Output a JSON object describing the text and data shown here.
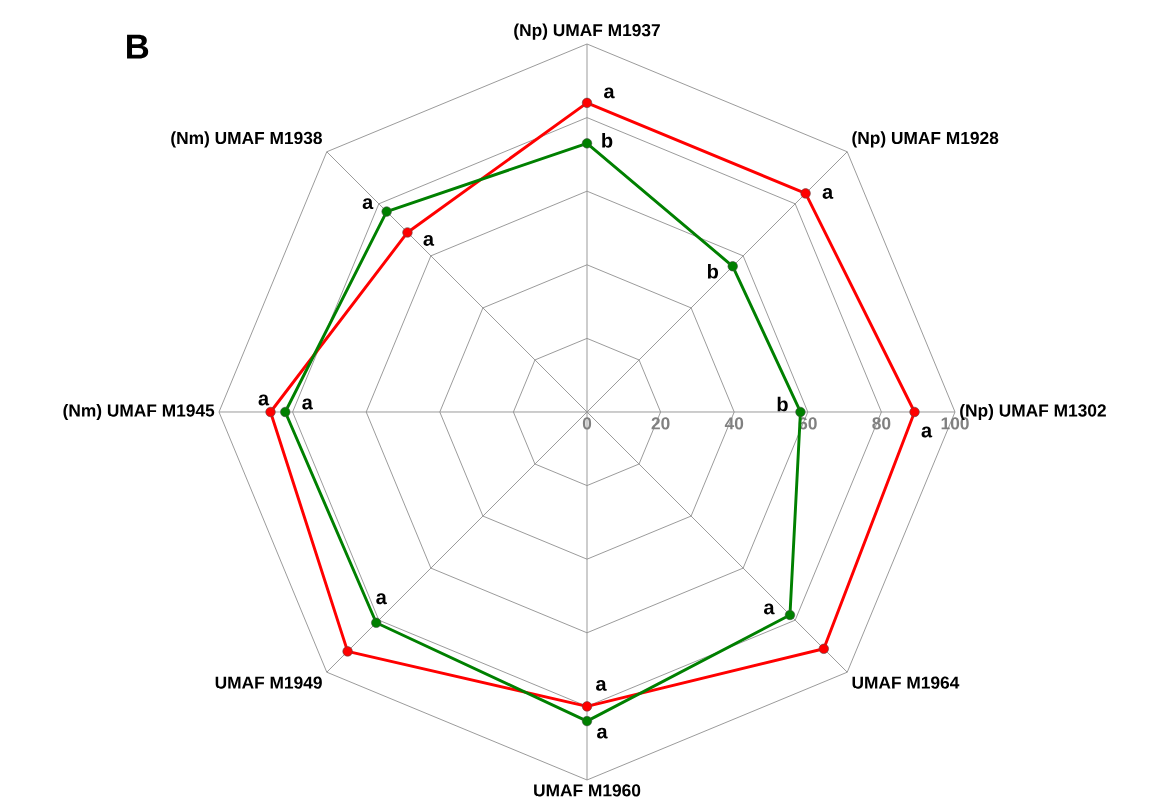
{
  "chart_data": {
    "type": "radar",
    "title": "B",
    "categories": [
      "(Np) UMAF M1937",
      "(Np) UMAF M1928",
      "(Np) UMAF M1302",
      "UMAF M1964",
      "UMAF M1960",
      "UMAF M1949",
      "(Nm) UMAF M1945",
      "(Nm) UMAF M1938"
    ],
    "series": [
      {
        "color": "#ff0000",
        "values": [
          84,
          84,
          89,
          91,
          80,
          92,
          86,
          69
        ]
      },
      {
        "color": "#008000",
        "values": [
          73,
          56,
          58,
          78,
          84,
          81,
          82,
          77
        ]
      }
    ],
    "ylim": [
      0,
      100
    ],
    "yticks": [
      0,
      20,
      40,
      60,
      80,
      100
    ],
    "grid": true,
    "marker": "circle",
    "line_style": "solid",
    "annotations": [
      "a",
      "b",
      "a",
      "b",
      "a",
      "b",
      "a",
      "a",
      "a",
      "a",
      "a",
      "a",
      "a",
      "a"
    ]
  }
}
